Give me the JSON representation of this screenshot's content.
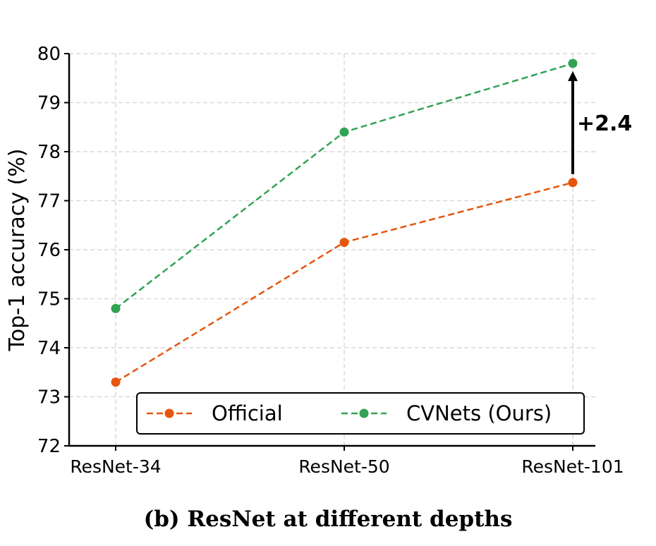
{
  "chart_data": {
    "type": "line",
    "title": "",
    "xlabel": "",
    "ylabel": "Top-1 accuracy (%)",
    "categories": [
      "ResNet-34",
      "ResNet-50",
      "ResNet-101"
    ],
    "ylim": [
      72,
      80
    ],
    "yticks": [
      72,
      73,
      74,
      75,
      76,
      77,
      78,
      79,
      80
    ],
    "grid": true,
    "legend_placement": "bottom-center",
    "series": [
      {
        "name": "Official",
        "values": [
          73.3,
          76.15,
          77.37
        ],
        "color": "#e6550d",
        "line_style": "dashed",
        "marker": "circle"
      },
      {
        "name": "CVNets (Ours)",
        "values": [
          74.8,
          78.4,
          79.8
        ],
        "color": "#31a354",
        "line_style": "dashed",
        "marker": "circle"
      }
    ],
    "annotations": [
      {
        "text": "+2.4",
        "category": "ResNet-101",
        "from_value": 77.37,
        "to_value": 79.8,
        "arrow": "up"
      }
    ]
  },
  "caption": "(b) ResNet at different depths"
}
